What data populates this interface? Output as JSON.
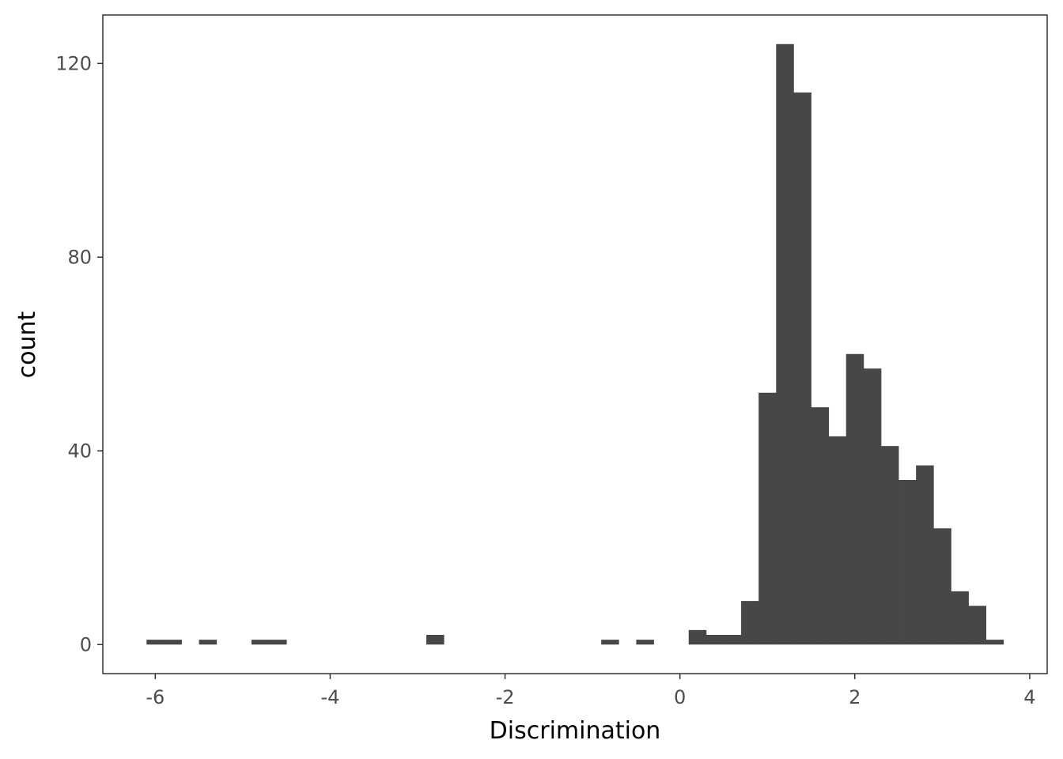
{
  "chart_data": {
    "type": "bar",
    "subtype": "histogram",
    "xlabel": "Discrimination",
    "ylabel": "count",
    "xlim": [
      -6.6,
      4.2
    ],
    "ylim": [
      -6,
      130
    ],
    "x_ticks": [
      -6,
      -4,
      -2,
      0,
      2,
      4
    ],
    "y_ticks": [
      0,
      40,
      80,
      120
    ],
    "bin_width": 0.2,
    "bins": [
      {
        "x0": -6.1,
        "x1": -5.9,
        "count": 1
      },
      {
        "x0": -5.9,
        "x1": -5.7,
        "count": 1
      },
      {
        "x0": -5.5,
        "x1": -5.3,
        "count": 1
      },
      {
        "x0": -4.9,
        "x1": -4.7,
        "count": 1
      },
      {
        "x0": -4.7,
        "x1": -4.5,
        "count": 1
      },
      {
        "x0": -2.9,
        "x1": -2.7,
        "count": 2
      },
      {
        "x0": -0.9,
        "x1": -0.7,
        "count": 1
      },
      {
        "x0": -0.5,
        "x1": -0.3,
        "count": 1
      },
      {
        "x0": 0.1,
        "x1": 0.3,
        "count": 3
      },
      {
        "x0": 0.3,
        "x1": 0.5,
        "count": 2
      },
      {
        "x0": 0.5,
        "x1": 0.7,
        "count": 2
      },
      {
        "x0": 0.7,
        "x1": 0.9,
        "count": 9
      },
      {
        "x0": 0.9,
        "x1": 1.1,
        "count": 52
      },
      {
        "x0": 1.1,
        "x1": 1.3,
        "count": 124
      },
      {
        "x0": 1.3,
        "x1": 1.5,
        "count": 114
      },
      {
        "x0": 1.5,
        "x1": 1.7,
        "count": 49
      },
      {
        "x0": 1.7,
        "x1": 1.9,
        "count": 43
      },
      {
        "x0": 1.9,
        "x1": 2.1,
        "count": 60
      },
      {
        "x0": 2.1,
        "x1": 2.3,
        "count": 57
      },
      {
        "x0": 2.3,
        "x1": 2.5,
        "count": 41
      },
      {
        "x0": 2.5,
        "x1": 2.7,
        "count": 34
      },
      {
        "x0": 2.7,
        "x1": 2.9,
        "count": 37
      },
      {
        "x0": 2.9,
        "x1": 3.1,
        "count": 24
      },
      {
        "x0": 3.1,
        "x1": 3.3,
        "count": 11
      },
      {
        "x0": 3.3,
        "x1": 3.5,
        "count": 8
      },
      {
        "x0": 3.5,
        "x1": 3.7,
        "count": 1
      }
    ],
    "grid": false,
    "bar_color": "#474747",
    "panel_border_color": "#333333"
  }
}
